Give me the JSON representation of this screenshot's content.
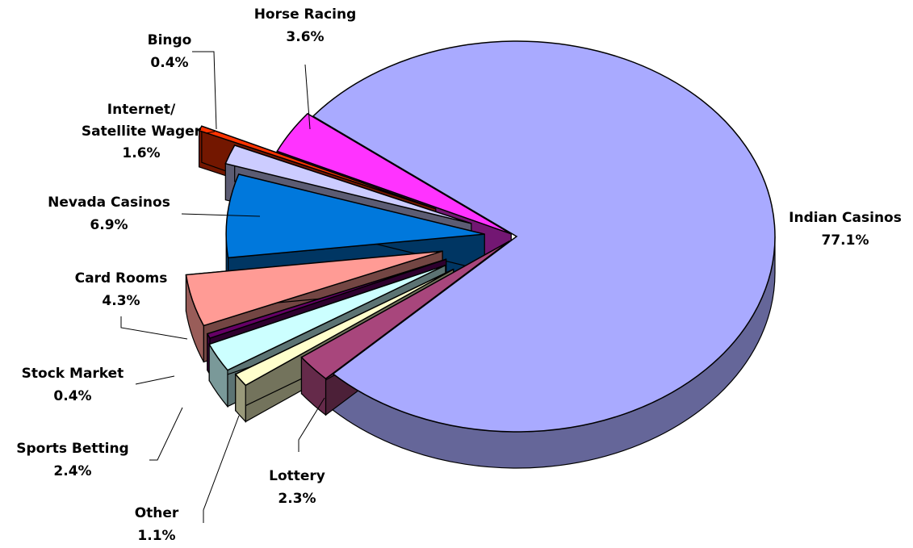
{
  "chart_data": {
    "type": "pie",
    "categories": [
      "Indian Casinos",
      "Lottery",
      "Other",
      "Sports Betting",
      "Stock Market",
      "Card Rooms",
      "Nevada Casinos",
      "Internet/ Satellite Wager",
      "Bingo",
      "Horse Racing"
    ],
    "values": [
      77.1,
      2.3,
      1.1,
      2.4,
      0.4,
      4.3,
      6.9,
      1.6,
      0.4,
      3.6
    ],
    "value_labels": [
      "77.1%",
      "2.3%",
      "1.1%",
      "2.4%",
      "0.4%",
      "4.3%",
      "6.9%",
      "1.6%",
      "0.4%",
      "3.6%"
    ],
    "colors": [
      "#a9aaff",
      "#a8467c",
      "#ffffcc",
      "#ccffff",
      "#660066",
      "#ff9b95",
      "#0078dc",
      "#ccccff",
      "#ff3300",
      "#ff33ff"
    ]
  }
}
